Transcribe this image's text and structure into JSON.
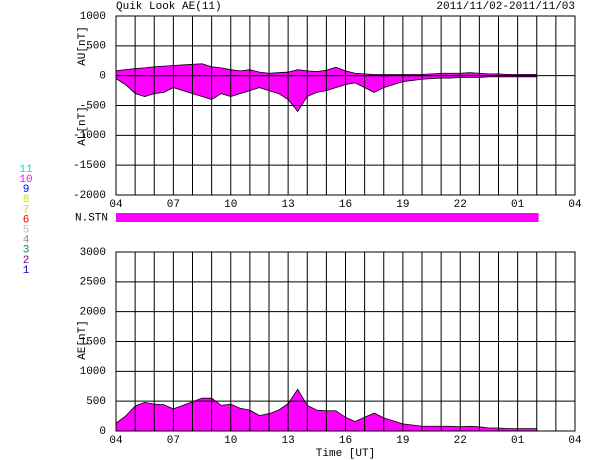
{
  "header": {
    "title": "Quik Look AE(11)",
    "date_range": "2011/11/02-2011/11/03"
  },
  "station_legend": [
    {
      "label": "11",
      "color": "#00e0e0"
    },
    {
      "label": "10",
      "color": "#ff00ff"
    },
    {
      "label": "9",
      "color": "#0000ff"
    },
    {
      "label": "8",
      "color": "#e0e000"
    },
    {
      "label": "7",
      "color": "#c0e000"
    },
    {
      "label": "6",
      "color": "#ff0000"
    },
    {
      "label": "5",
      "color": "#c0c0c0"
    },
    {
      "label": "4",
      "color": "#909090"
    },
    {
      "label": "3",
      "color": "#008080"
    },
    {
      "label": "2",
      "color": "#800080"
    },
    {
      "label": "1",
      "color": "#0000c0"
    }
  ],
  "chart_data": [
    {
      "type": "area",
      "color": "#ff00ff",
      "x": [
        4,
        4.5,
        5,
        5.5,
        6,
        6.5,
        7,
        7.5,
        8,
        8.5,
        9,
        9.5,
        10,
        10.5,
        11,
        11.5,
        12,
        12.5,
        13,
        13.5,
        14,
        14.5,
        15,
        15.5,
        16,
        16.5,
        17,
        17.5,
        18,
        18.5,
        19,
        19.5,
        20,
        20.5,
        21,
        21.5,
        22,
        22.5,
        23,
        23.5,
        24,
        24.5,
        25,
        25.5,
        26
      ],
      "series": [
        {
          "label": "AU[nT]",
          "values": [
            80,
            100,
            120,
            130,
            150,
            160,
            170,
            180,
            190,
            200,
            150,
            130,
            100,
            80,
            100,
            60,
            40,
            50,
            60,
            100,
            80,
            70,
            90,
            140,
            80,
            40,
            30,
            20,
            20,
            20,
            20,
            20,
            20,
            30,
            40,
            40,
            40,
            50,
            40,
            30,
            30,
            20,
            20,
            20,
            20
          ]
        },
        {
          "label": "AL[nT]",
          "values": [
            -50,
            -150,
            -300,
            -350,
            -300,
            -280,
            -200,
            -250,
            -300,
            -350,
            -400,
            -300,
            -350,
            -300,
            -250,
            -200,
            -250,
            -300,
            -400,
            -600,
            -350,
            -280,
            -250,
            -200,
            -150,
            -120,
            -200,
            -280,
            -200,
            -150,
            -100,
            -80,
            -60,
            -50,
            -40,
            -40,
            -30,
            -30,
            -30,
            -20,
            -20,
            -20,
            -20,
            -20,
            -20
          ]
        }
      ],
      "xlim": [
        4,
        28
      ],
      "xticks": [
        {
          "value": 4,
          "label": "04"
        },
        {
          "value": 7,
          "label": "07"
        },
        10,
        13,
        16,
        19,
        22,
        {
          "value": 25,
          "label": "01"
        },
        {
          "value": 28,
          "label": "04"
        }
      ],
      "xgrid": [
        4,
        5,
        6,
        7,
        8,
        9,
        10,
        11,
        12,
        13,
        14,
        15,
        16,
        17,
        18,
        19,
        20,
        21,
        22,
        23,
        24,
        25,
        26,
        27,
        28
      ],
      "ylim": [
        -2000,
        1000
      ],
      "yticks": [
        -2000,
        -1500,
        -1000,
        -500,
        0,
        500,
        1000
      ]
    },
    {
      "type": "band",
      "label": "N.STN",
      "x": [
        4,
        26.1
      ],
      "values": [
        10,
        10
      ],
      "color": "#ff00ff",
      "xlim": [
        4,
        28
      ]
    },
    {
      "type": "area",
      "color": "#ff00ff",
      "xlabel": "Time [UT]",
      "x": [
        4,
        4.5,
        5,
        5.5,
        6,
        6.5,
        7,
        7.5,
        8,
        8.5,
        9,
        9.5,
        10,
        10.5,
        11,
        11.5,
        12,
        12.5,
        13,
        13.5,
        14,
        14.5,
        15,
        15.5,
        16,
        16.5,
        17,
        17.5,
        18,
        18.5,
        19,
        19.5,
        20,
        20.5,
        21,
        21.5,
        22,
        22.5,
        23,
        23.5,
        24,
        24.5,
        25,
        25.5,
        26
      ],
      "series": [
        {
          "label": "AE[nT]",
          "values": [
            130,
            250,
            420,
            480,
            450,
            440,
            370,
            430,
            490,
            550,
            550,
            430,
            450,
            380,
            350,
            260,
            290,
            350,
            460,
            700,
            430,
            350,
            340,
            340,
            230,
            160,
            230,
            300,
            220,
            170,
            120,
            100,
            80,
            80,
            80,
            80,
            70,
            80,
            70,
            50,
            50,
            40,
            40,
            40,
            40
          ]
        }
      ],
      "xlim": [
        4,
        28
      ],
      "xticks": [
        {
          "value": 4,
          "label": "04"
        },
        {
          "value": 7,
          "label": "07"
        },
        10,
        13,
        16,
        19,
        22,
        {
          "value": 25,
          "label": "01"
        },
        {
          "value": 28,
          "label": "04"
        }
      ],
      "xgrid": [
        4,
        5,
        6,
        7,
        8,
        9,
        10,
        11,
        12,
        13,
        14,
        15,
        16,
        17,
        18,
        19,
        20,
        21,
        22,
        23,
        24,
        25,
        26,
        27,
        28
      ],
      "ylim": [
        0,
        3000
      ],
      "yticks": [
        0,
        500,
        1000,
        1500,
        2000,
        2500,
        3000
      ]
    }
  ]
}
